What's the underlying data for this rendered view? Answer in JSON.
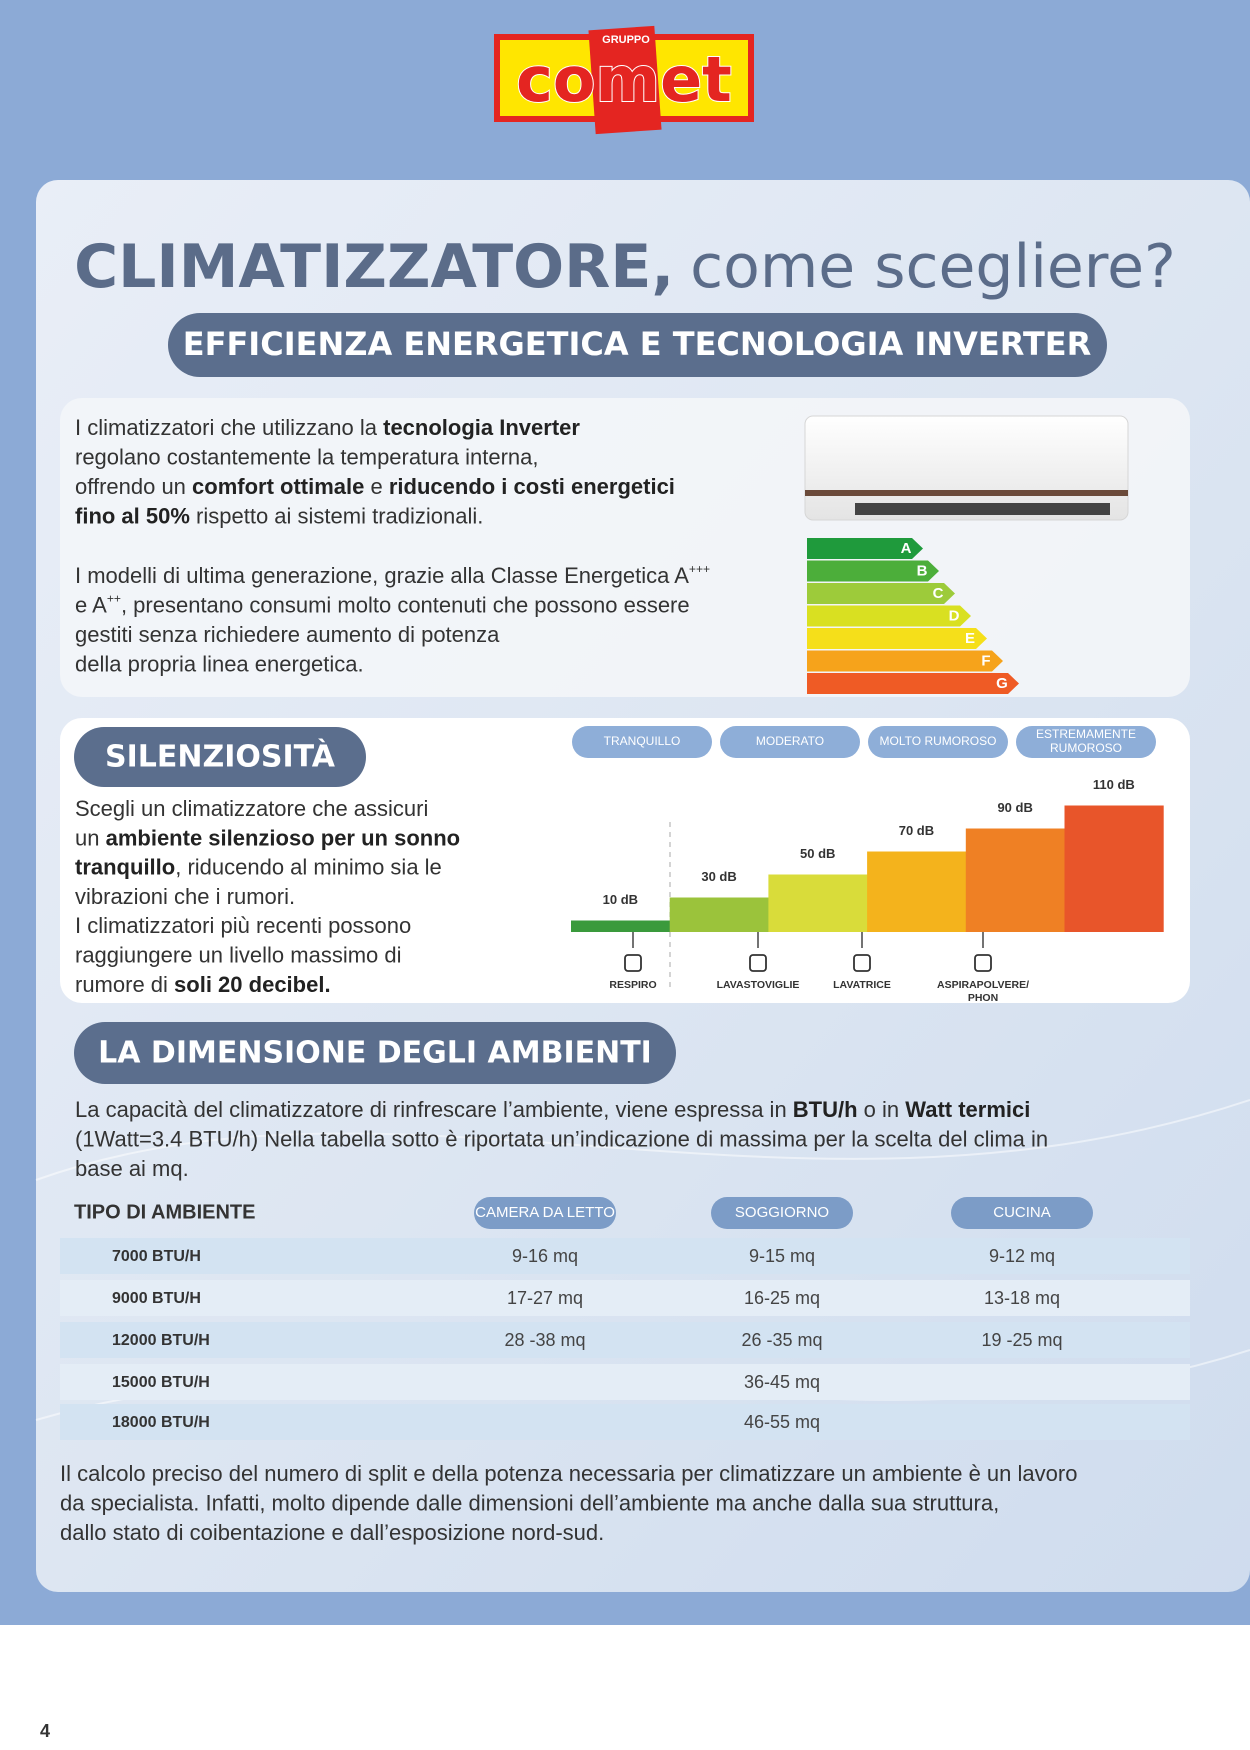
{
  "logo": {
    "group": "GRUPPO",
    "brand": "comet"
  },
  "title": {
    "bold": "CLIMATIZZATORE,",
    "regular": "come scegliere?"
  },
  "subtitle": "EFFICIENZA ENERGETICA E TECNOLOGIA INVERTER",
  "efficiency": {
    "paragraphs": [
      [
        [
          {
            "text": "I climatizzatori che utilizzano la "
          },
          {
            "text": "tecnologia Inverter",
            "bold": true
          }
        ],
        [
          {
            "text": "regolano costantemente la temperatura interna,"
          }
        ],
        [
          {
            "text": "offrendo un "
          },
          {
            "text": "comfort ottimale",
            "bold": true
          },
          {
            "text": " e "
          },
          {
            "text": "riducendo i costi energetici",
            "bold": true
          }
        ],
        [
          {
            "text": "fino al 50%",
            "bold": true
          },
          {
            "text": " rispetto ai sistemi tradizionali."
          }
        ]
      ],
      [
        [
          {
            "text": "I modelli di ultima generazione, grazie alla Classe Energetica A"
          },
          {
            "text": "+++",
            "sup": true
          }
        ],
        [
          {
            "text": "e A"
          },
          {
            "text": "++",
            "sup": true
          },
          {
            "text": ", presentano consumi molto contenuti che possono essere"
          }
        ],
        [
          {
            "text": "gestiti senza richiedere aumento di potenza"
          }
        ],
        [
          {
            "text": "della propria linea energetica."
          }
        ]
      ]
    ],
    "energy_classes": [
      "A",
      "B",
      "C",
      "D",
      "E",
      "F",
      "G"
    ]
  },
  "silence": {
    "heading": "SILENZIOSITÀ",
    "lines": [
      [
        {
          "text": "Scegli un climatizzatore che assicuri"
        }
      ],
      [
        {
          "text": "un "
        },
        {
          "text": "ambiente silenzioso per un sonno",
          "bold": true
        }
      ],
      [
        {
          "text": "tranquillo",
          "bold": true
        },
        {
          "text": ", riducendo al minimo sia le"
        }
      ],
      [
        {
          "text": "vibrazioni che i rumori."
        }
      ],
      [
        {
          "text": "I climatizzatori più recenti possono"
        }
      ],
      [
        {
          "text": "raggiungere un livello massimo di"
        }
      ],
      [
        {
          "text": "rumore di "
        },
        {
          "text": "soli 20 decibel.",
          "bold": true
        }
      ]
    ],
    "levels": [
      "TRANQUILLO",
      "MODERATO",
      "MOLTO RUMOROSO",
      "ESTREMAMENTE RUMOROSO"
    ],
    "chart": {
      "values": [
        10,
        30,
        50,
        70,
        90,
        110
      ],
      "value_labels": [
        "10 dB",
        "30 dB",
        "50 dB",
        "70 dB",
        "90 dB",
        "110 dB"
      ],
      "colors": [
        "#3a9a3c",
        "#9bc33b",
        "#d9dc3a",
        "#f4b31c",
        "#ef8024",
        "#e8552a"
      ]
    },
    "sources": [
      "RESPIRO",
      "LAVASTOVIGLIE",
      "LAVATRICE",
      "ASPIRAPOLVERE/ PHON"
    ]
  },
  "rooms": {
    "heading": "LA DIMENSIONE DEGLI AMBIENTI",
    "lines": [
      [
        {
          "text": "La capacità del climatizzatore di rinfrescare l’ambiente, viene espressa in "
        },
        {
          "text": "BTU/h",
          "bold": true
        },
        {
          "text": " o in "
        },
        {
          "text": "Watt termici",
          "bold": true
        }
      ],
      [
        {
          "text": "(1Watt=3.4 BTU/h) Nella tabella sotto è riportata un’indicazione di massima per la scelta del clima in"
        }
      ],
      [
        {
          "text": "base ai mq."
        }
      ]
    ],
    "table": {
      "header": "TIPO DI AMBIENTE",
      "columns": [
        "CAMERA DA LETTO",
        "SOGGIORNO",
        "CUCINA"
      ],
      "rows": [
        [
          "7000 BTU/H",
          "9-16 mq",
          "9-15 mq",
          "9-12 mq"
        ],
        [
          "9000 BTU/H",
          "17-27 mq",
          "16-25 mq",
          "13-18 mq"
        ],
        [
          "12000 BTU/H",
          "28 -38 mq",
          "26 -35 mq",
          "19 -25 mq"
        ],
        [
          "15000 BTU/H",
          null,
          "36-45 mq",
          null
        ],
        [
          "18000 BTU/H",
          null,
          "46-55 mq",
          null
        ]
      ]
    }
  },
  "footer": {
    "lines": [
      [
        {
          "text": "Il calcolo preciso del numero di split e della potenza necessaria per climatizzare un ambiente è un lavoro"
        }
      ],
      [
        {
          "text": "da specialista. Infatti, molto dipende dalle dimensioni dell’ambiente ma anche dalla sua struttura,"
        }
      ],
      [
        {
          "text": "dallo stato di coibentazione e dall’esposizione nord-sud."
        }
      ]
    ],
    "page_number": "4"
  }
}
